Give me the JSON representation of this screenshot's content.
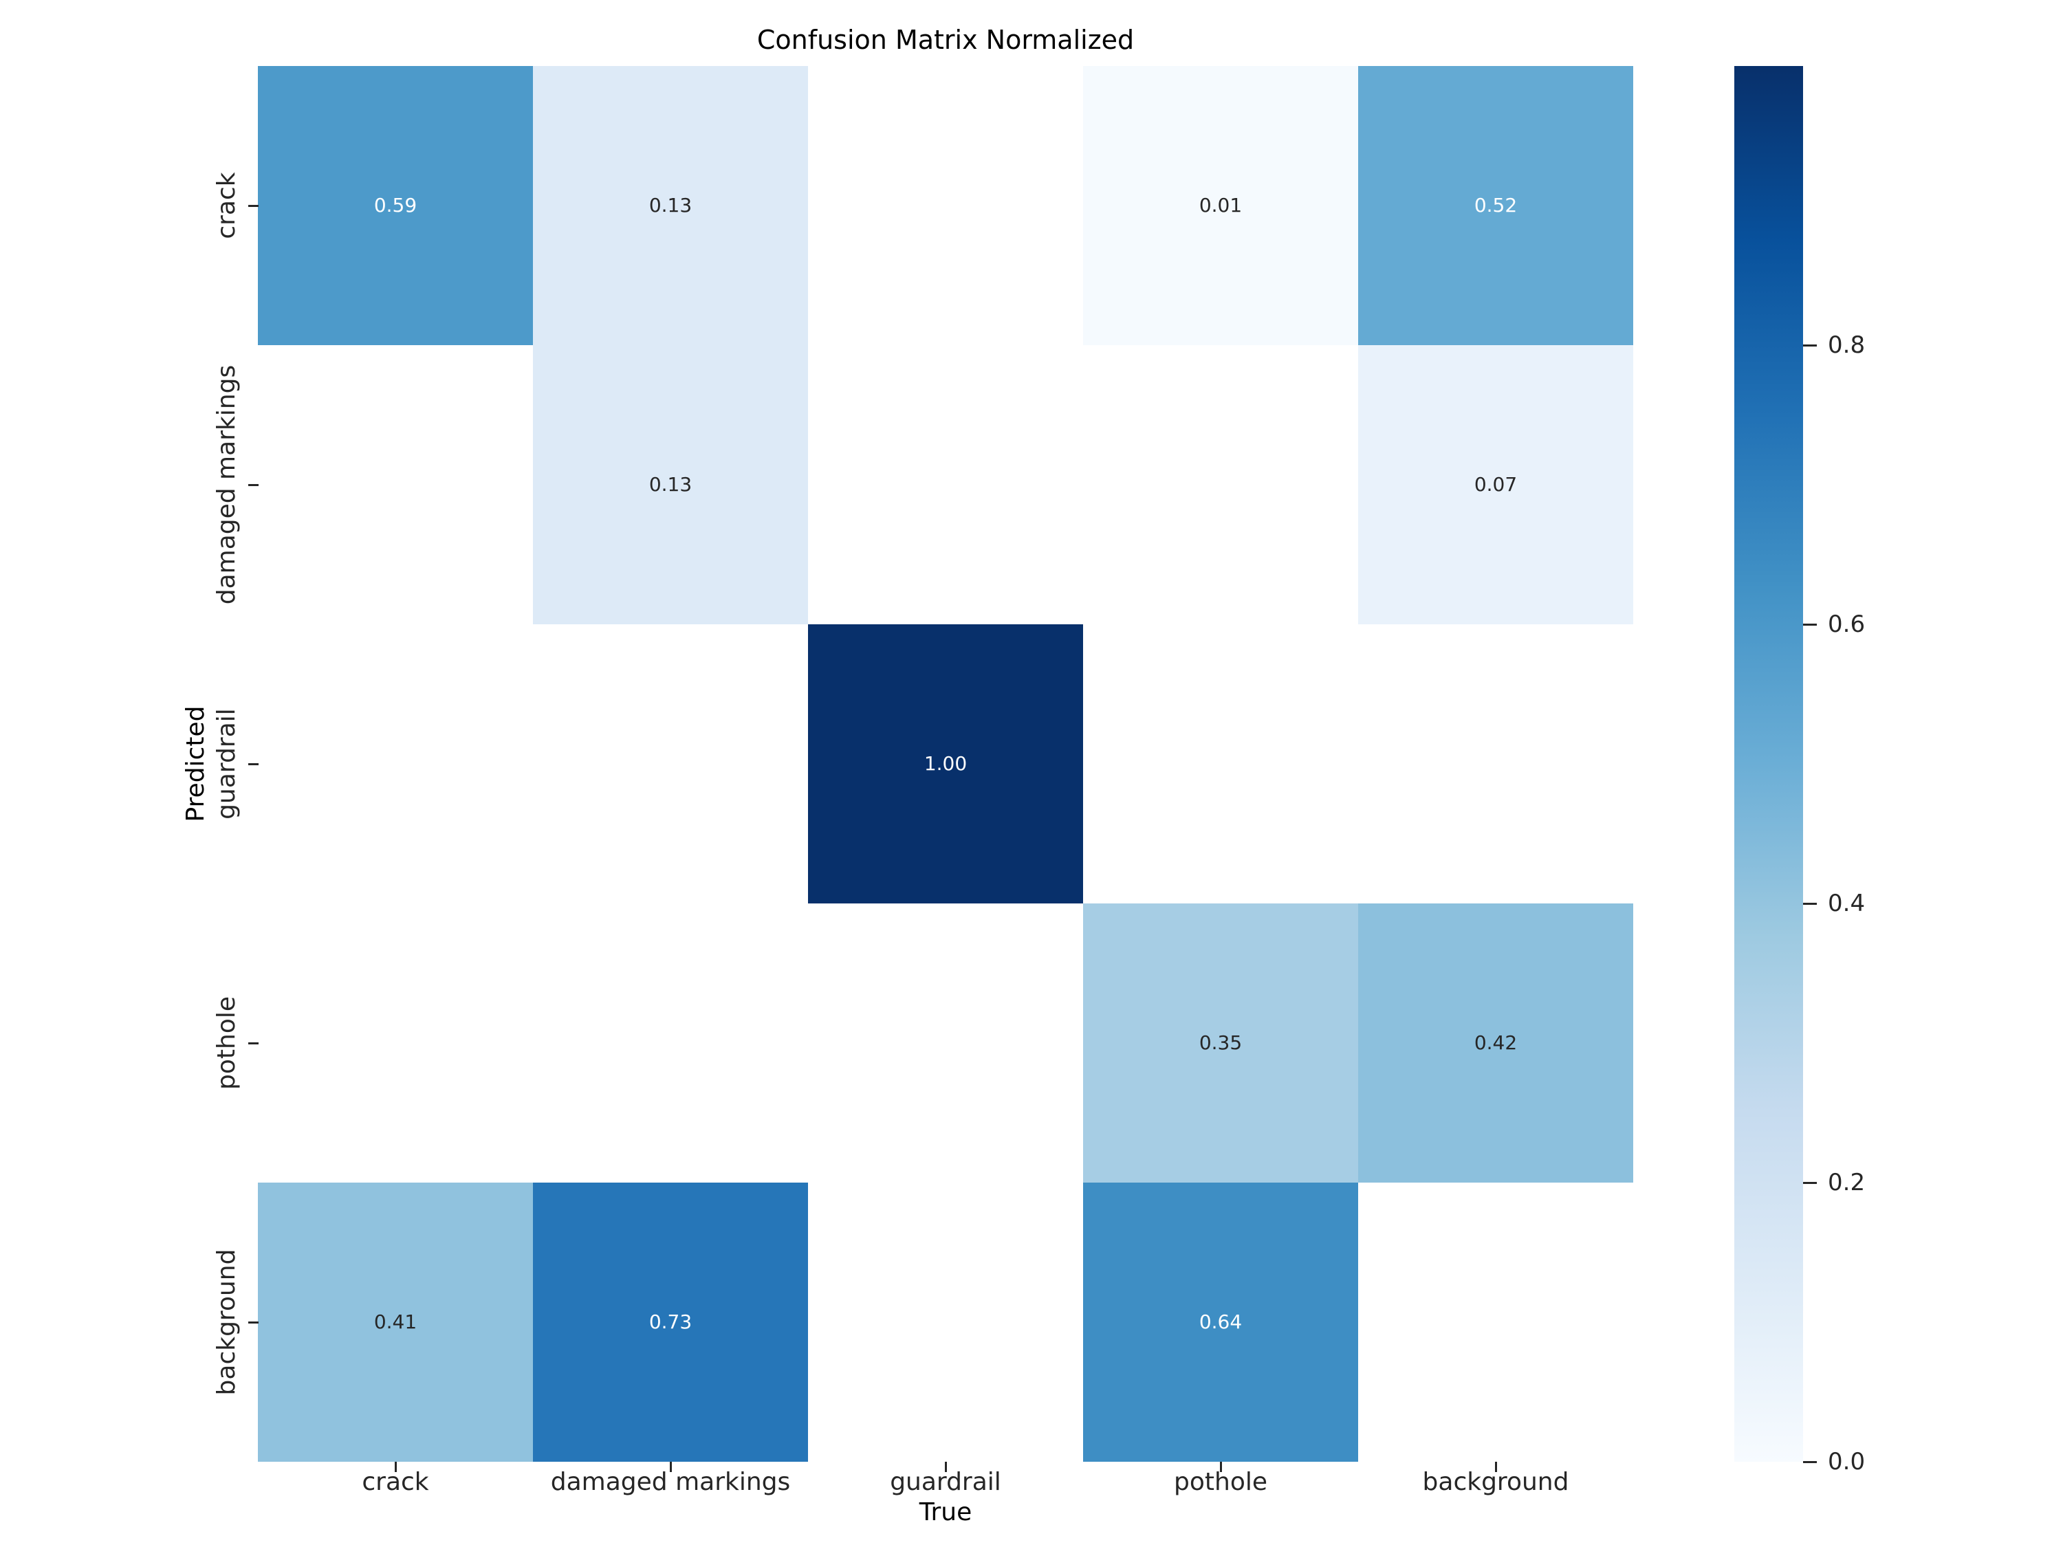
{
  "figure": {
    "title": "Confusion Matrix Normalized"
  },
  "chart_data": {
    "type": "heatmap",
    "title": "Confusion Matrix Normalized",
    "xlabel": "True",
    "ylabel": "Predicted",
    "x_categories": [
      "crack",
      "damaged markings",
      "guardrail",
      "pothole",
      "background"
    ],
    "y_categories": [
      "crack",
      "damaged markings",
      "guardrail",
      "pothole",
      "background"
    ],
    "matrix": [
      [
        0.59,
        0.13,
        null,
        0.01,
        0.52
      ],
      [
        null,
        0.13,
        null,
        null,
        0.07
      ],
      [
        null,
        null,
        1.0,
        null,
        null
      ],
      [
        null,
        null,
        null,
        0.35,
        0.42
      ],
      [
        0.41,
        0.73,
        null,
        0.64,
        null
      ]
    ],
    "annot_decimals": 2,
    "vmin": 0.0,
    "vmax": 1.0,
    "grid": false,
    "legend": null,
    "colorbar": {
      "position": "right",
      "ticks": [
        0.0,
        0.2,
        0.4,
        0.6,
        0.8
      ],
      "tick_labels": [
        "0.0",
        "0.2",
        "0.4",
        "0.6",
        "0.8"
      ]
    },
    "colormap": {
      "name": "Blues",
      "stops": [
        [
          0.0,
          "#f7fbff"
        ],
        [
          0.125,
          "#deebf7"
        ],
        [
          0.25,
          "#c6dbef"
        ],
        [
          0.375,
          "#9ecae1"
        ],
        [
          0.5,
          "#6baed6"
        ],
        [
          0.625,
          "#4292c6"
        ],
        [
          0.75,
          "#2171b5"
        ],
        [
          0.875,
          "#08519c"
        ],
        [
          1.0,
          "#08306b"
        ]
      ]
    },
    "colors": {
      "empty_cell": "#ffffff",
      "annot_on_dark": "#ffffff",
      "annot_on_light": "#262626",
      "tick": "#262626",
      "text": "#000000"
    }
  }
}
